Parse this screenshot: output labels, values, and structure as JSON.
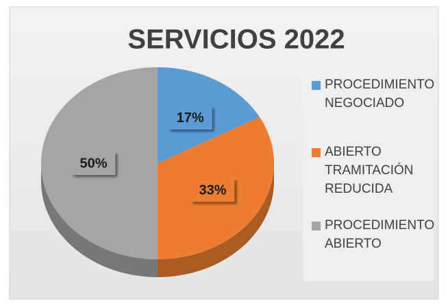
{
  "chart_data": {
    "type": "pie",
    "title": "SERVICIOS 2022",
    "categories": [
      "PROCEDIMIENTO NEGOCIADO",
      "ABIERTO TRAMITACIÓN REDUCIDA",
      "PROCEDIMIENTO ABIERTO"
    ],
    "values": [
      17,
      33,
      50
    ],
    "value_labels": [
      "17%",
      "33%",
      "50%"
    ],
    "colors": [
      "#5b9bd5",
      "#ed7d31",
      "#a5a5a5"
    ],
    "legend": "right"
  }
}
